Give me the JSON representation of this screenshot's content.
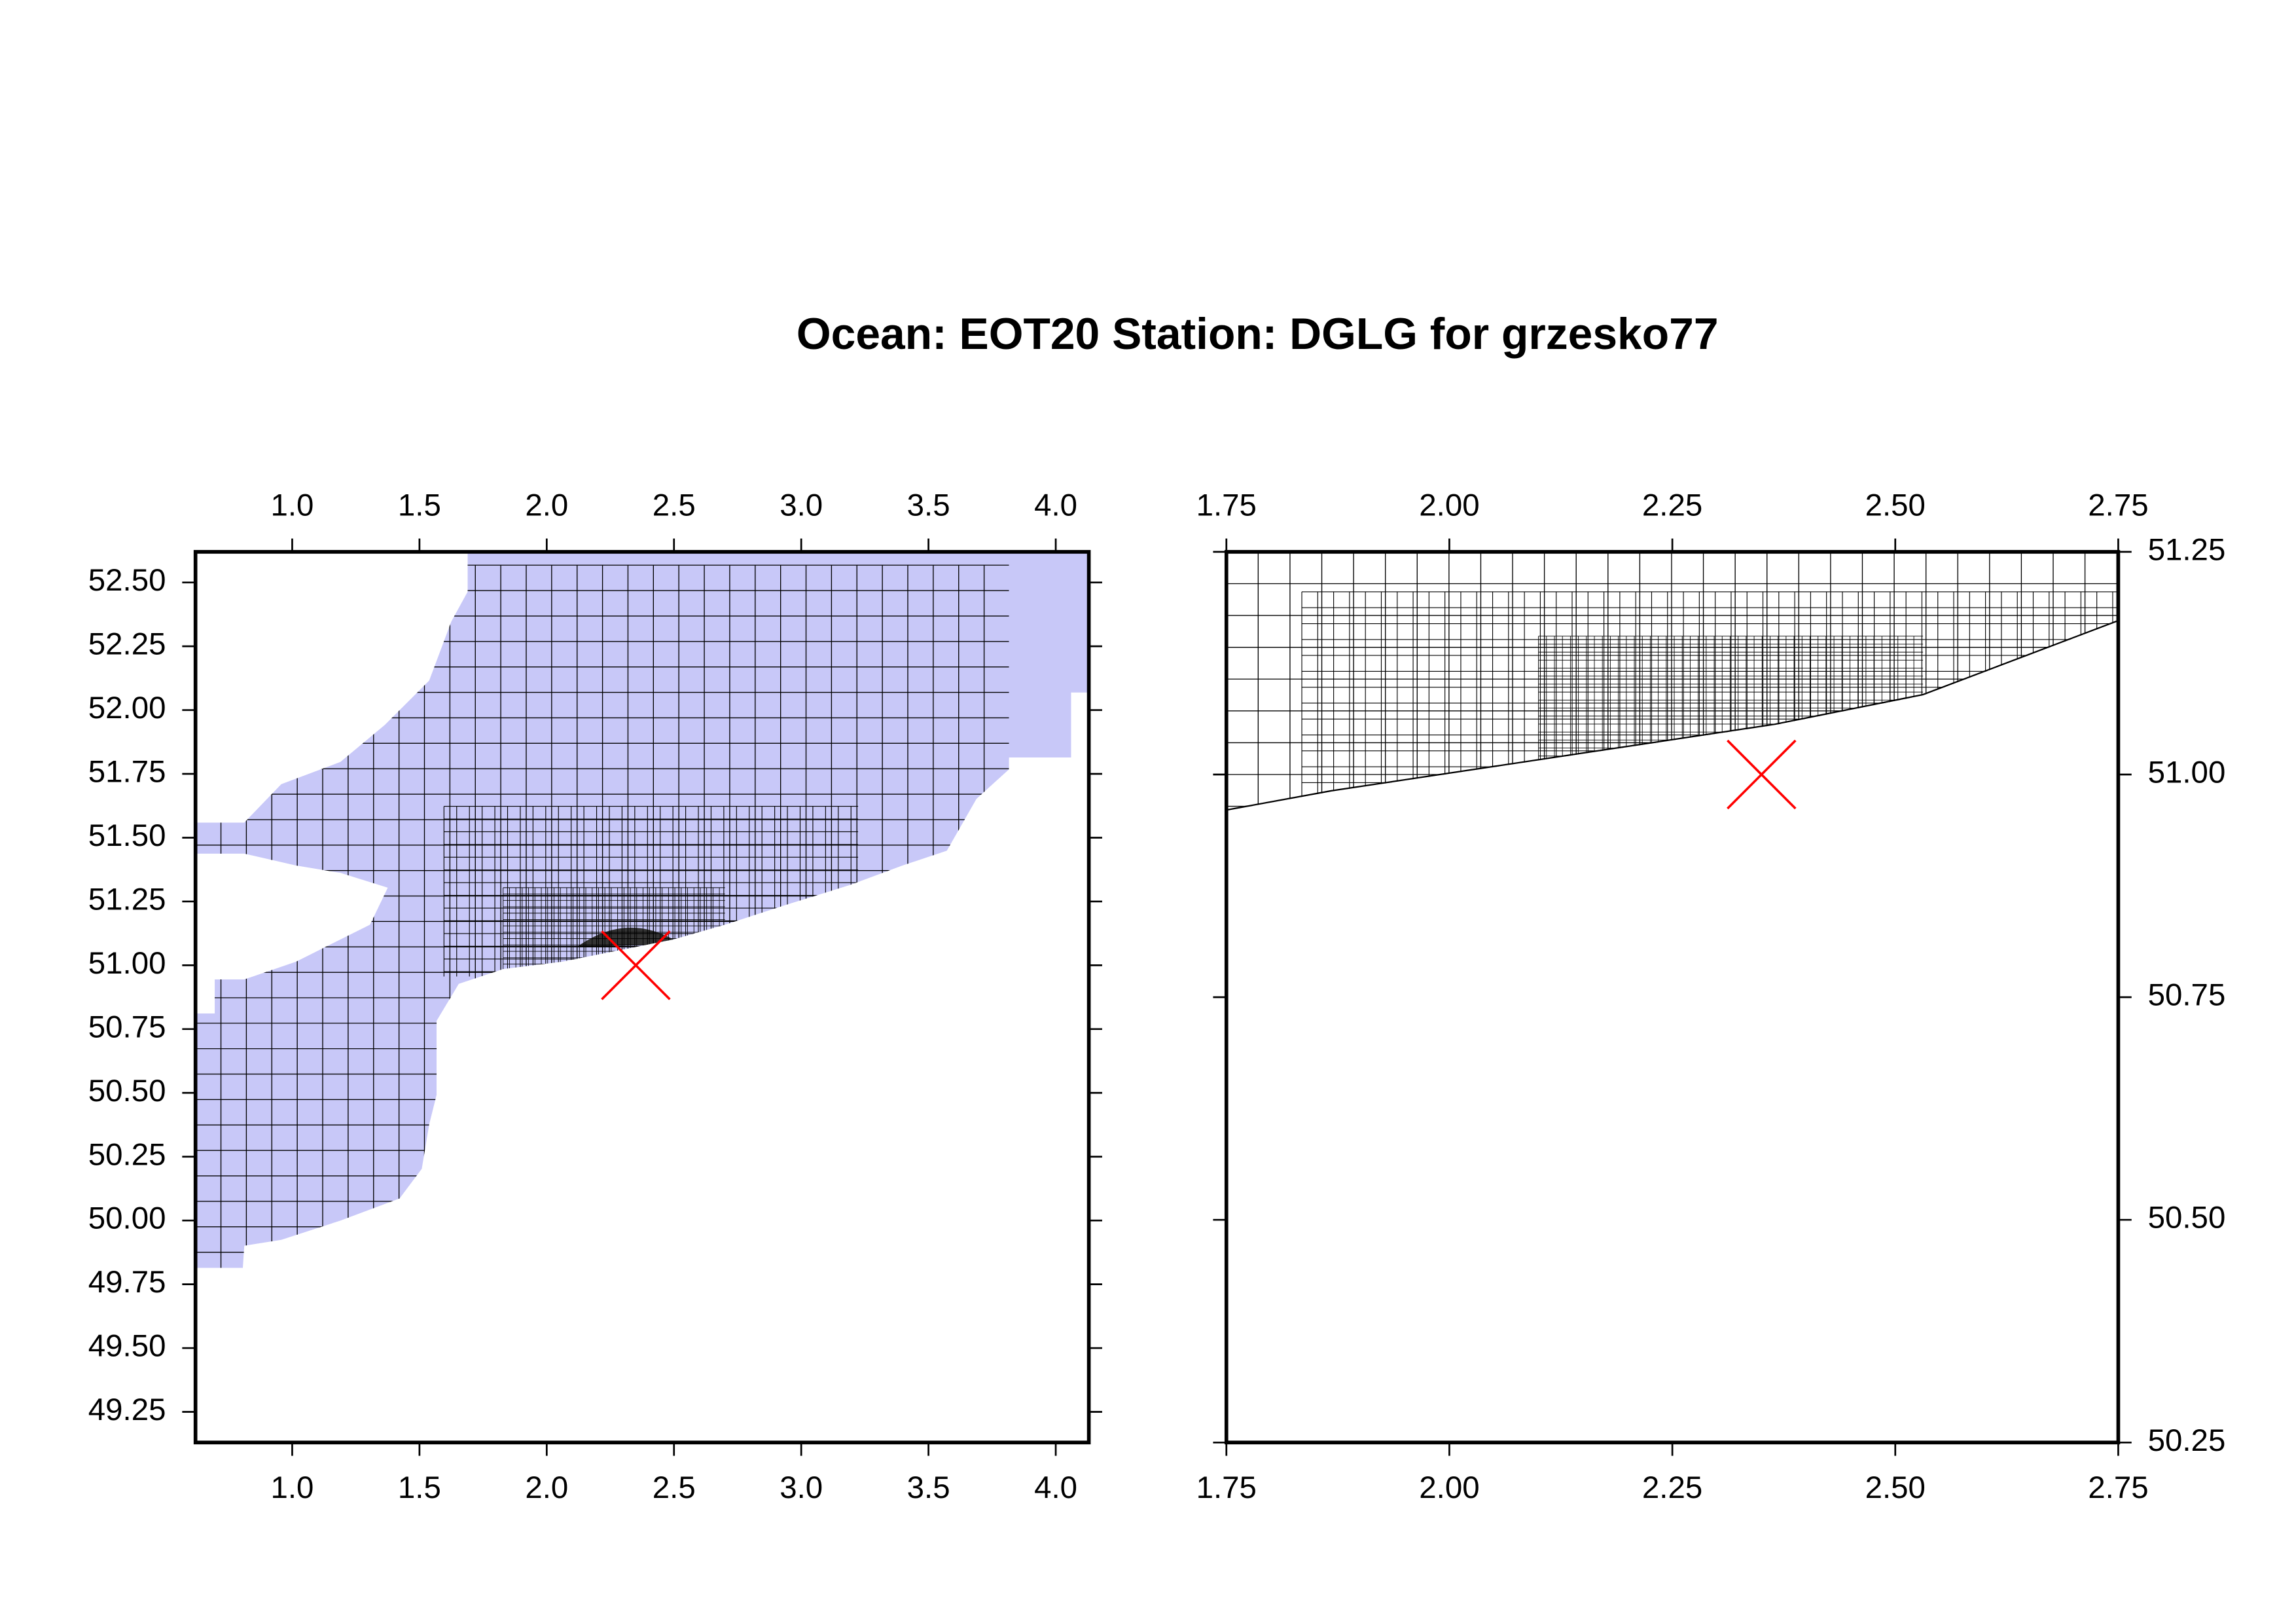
{
  "title": "Ocean: EOT20  Station: DGLG  for grzesko77",
  "chart_data": [
    {
      "type": "map",
      "xlim": [
        0.62,
        4.13
      ],
      "ylim": [
        49.13,
        52.62
      ],
      "xticks": [
        {
          "value": 1,
          "label": "1.0"
        },
        1.5,
        {
          "value": 2,
          "label": "2.0"
        },
        2.5,
        {
          "value": 3,
          "label": "3.0"
        },
        3.5,
        {
          "value": 4,
          "label": "4.0"
        }
      ],
      "yticks": [
        {
          "value": 49.25,
          "label": "49.25"
        },
        {
          "value": 49.5,
          "label": "49.50"
        },
        {
          "value": 49.75,
          "label": "49.75"
        },
        {
          "value": 50,
          "label": "50.00"
        },
        {
          "value": 50.25,
          "label": "50.25"
        },
        {
          "value": 50.5,
          "label": "50.50"
        },
        {
          "value": 50.75,
          "label": "50.75"
        },
        {
          "value": 51,
          "label": "51.00"
        },
        {
          "value": 51.25,
          "label": "51.25"
        },
        {
          "value": 51.5,
          "label": "51.50"
        },
        {
          "value": 51.75,
          "label": "51.75"
        },
        {
          "value": 52,
          "label": "52.00"
        },
        {
          "value": 52.25,
          "label": "52.25"
        },
        {
          "value": 52.5,
          "label": "52.50"
        }
      ],
      "x": [
        2.35
      ],
      "y": [
        51.0
      ],
      "marker_color": "#ff0000"
    },
    {
      "type": "map",
      "xlim": [
        1.75,
        2.75
      ],
      "ylim": [
        50.25,
        51.25
      ],
      "xticks": [
        1.75,
        {
          "value": 2,
          "label": "2.00"
        },
        2.25,
        {
          "value": 2.5,
          "label": "2.50"
        },
        2.75
      ],
      "yticks": [
        50.25,
        {
          "value": 50.5,
          "label": "50.50"
        },
        50.75,
        {
          "value": 51,
          "label": "51.00"
        },
        51.25
      ],
      "x": [
        2.35
      ],
      "y": [
        51.0
      ],
      "marker_color": "#ff0000"
    }
  ]
}
